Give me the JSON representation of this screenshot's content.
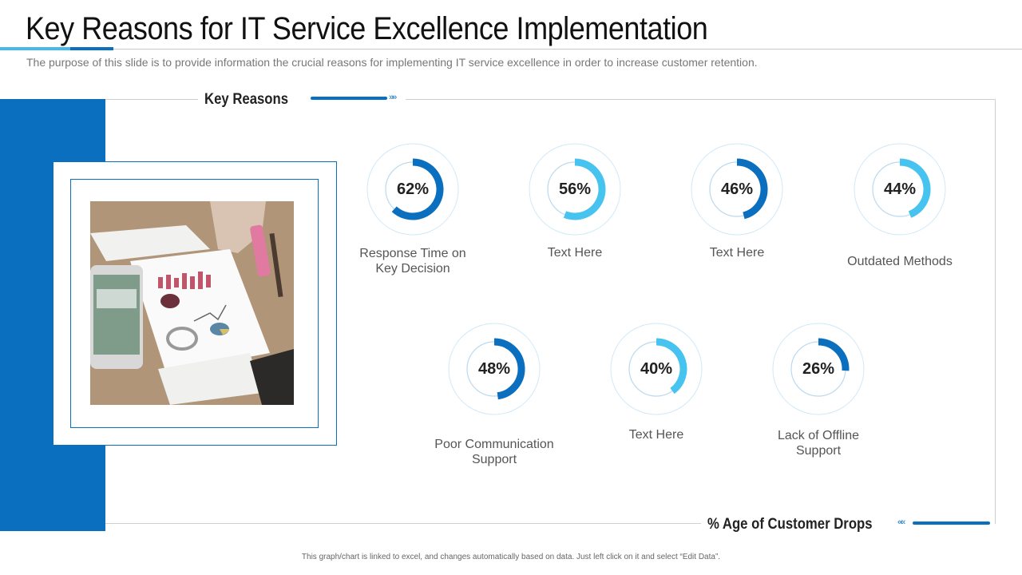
{
  "header": {
    "title": "Key Reasons for IT Service Excellence Implementation",
    "subtitle": "The purpose of this slide is to provide information the crucial reasons for implementing IT service excellence in order to increase customer retention."
  },
  "sections": {
    "key_reasons_label": "Key Reasons",
    "customer_drops_label": "% Age of Customer Drops"
  },
  "colors": {
    "accent_dark": "#0a6fbf",
    "accent_light": "#47b8ee",
    "gauge_track_outer": "#cfe9f8",
    "gauge_track_inner": "#bcd9ee"
  },
  "chart_data": {
    "type": "donut",
    "xlabel": "% Age of Customer Drops",
    "items": [
      {
        "label": "Response Time on Key Decision",
        "value": 62,
        "display": "62%",
        "color": "#0a6fbf"
      },
      {
        "label": "Text Here",
        "value": 56,
        "display": "56%",
        "color": "#47c3f0"
      },
      {
        "label": "Text Here",
        "value": 46,
        "display": "46%",
        "color": "#0a6fbf"
      },
      {
        "label": "Outdated Methods",
        "value": 44,
        "display": "44%",
        "color": "#47c3f0"
      },
      {
        "label": "Poor Communication Support",
        "value": 48,
        "display": "48%",
        "color": "#0a6fbf"
      },
      {
        "label": "Text Here",
        "value": 40,
        "display": "40%",
        "color": "#47c3f0"
      },
      {
        "label": "Lack of Offline Support",
        "value": 26,
        "display": "26%",
        "color": "#0a6fbf"
      }
    ]
  },
  "footer": {
    "note": "This graph/chart is linked to excel, and changes automatically based on data. Just left click on it and select “Edit Data”."
  }
}
